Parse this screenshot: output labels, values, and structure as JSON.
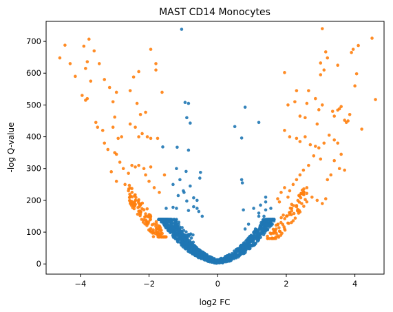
{
  "chart_data": {
    "type": "scatter",
    "title": "MAST CD14 Monocytes",
    "xlabel": "log2 FC",
    "ylabel": "-log Q-value",
    "xlim": [
      -5.0,
      4.85
    ],
    "ylim": [
      -32,
      763
    ],
    "xticks": [
      -4,
      -2,
      0,
      2,
      4
    ],
    "yticks": [
      0,
      100,
      200,
      300,
      400,
      500,
      600,
      700
    ],
    "grid": false,
    "colors": {
      "not_significant": "#1f77b4",
      "significant": "#ff7f0e"
    },
    "series": [
      {
        "color_key": "not_significant",
        "points": [
          [
            -1.05,
            738
          ],
          [
            -0.95,
            508
          ],
          [
            -0.85,
            505
          ],
          [
            -0.9,
            460
          ],
          [
            -0.8,
            443
          ],
          [
            -1.6,
            368
          ],
          [
            -1.18,
            367
          ],
          [
            -0.85,
            358
          ],
          [
            -1.2,
            300
          ],
          [
            -0.92,
            291
          ],
          [
            -0.5,
            288
          ],
          [
            -0.52,
            270
          ],
          [
            -0.8,
            245
          ],
          [
            -0.6,
            200
          ],
          [
            -0.7,
            208
          ],
          [
            -1.1,
            265
          ],
          [
            -1.3,
            250
          ],
          [
            -0.98,
            225
          ],
          [
            -1.0,
            230
          ],
          [
            -0.9,
            198
          ],
          [
            -1.15,
            215
          ],
          [
            -0.55,
            165
          ],
          [
            -0.45,
            150
          ],
          [
            -0.85,
            168
          ],
          [
            -1.5,
            175
          ],
          [
            -1.3,
            178
          ],
          [
            -1.2,
            175
          ],
          [
            -0.7,
            180
          ],
          [
            -0.6,
            175
          ],
          [
            0.8,
            493
          ],
          [
            0.5,
            432
          ],
          [
            0.7,
            396
          ],
          [
            1.2,
            445
          ],
          [
            0.7,
            265
          ],
          [
            0.72,
            255
          ],
          [
            1.4,
            210
          ],
          [
            1.4,
            195
          ],
          [
            1.25,
            185
          ],
          [
            1.05,
            175
          ],
          [
            1.2,
            160
          ],
          [
            0.75,
            170
          ],
          [
            1.5,
            140
          ],
          [
            1.35,
            150
          ],
          [
            1.2,
            150
          ],
          [
            1.5,
            120
          ],
          [
            1.4,
            170
          ],
          [
            0.8,
            110
          ],
          [
            0.9,
            125
          ],
          [
            1.1,
            110
          ],
          [
            1.55,
            175
          ]
        ],
        "band": {
          "description": "dense V-shaped cluster near the bottom",
          "x": [
            -1.75,
            1.7
          ],
          "y_min": 0,
          "count": 1050
        }
      },
      {
        "color_key": "significant",
        "points": [
          [
            -4.6,
            648
          ],
          [
            -4.45,
            688
          ],
          [
            -4.3,
            630
          ],
          [
            -4.15,
            590
          ],
          [
            -3.95,
            530
          ],
          [
            -3.85,
            515
          ],
          [
            -3.8,
            520
          ],
          [
            -3.9,
            685
          ],
          [
            -3.75,
            707
          ],
          [
            -3.6,
            670
          ],
          [
            -3.45,
            630
          ],
          [
            -3.7,
            575
          ],
          [
            -3.85,
            615
          ],
          [
            -3.8,
            636
          ],
          [
            -3.3,
            580
          ],
          [
            -3.15,
            555
          ],
          [
            -3.05,
            510
          ],
          [
            -2.95,
            540
          ],
          [
            -2.55,
            545
          ],
          [
            -2.45,
            588
          ],
          [
            -2.35,
            505
          ],
          [
            -2.3,
            605
          ],
          [
            -2.25,
            470
          ],
          [
            -2.1,
            477
          ],
          [
            -1.95,
            675
          ],
          [
            -1.8,
            630
          ],
          [
            -1.8,
            610
          ],
          [
            -1.62,
            540
          ],
          [
            -3.55,
            445
          ],
          [
            -3.5,
            430
          ],
          [
            -3.35,
            420
          ],
          [
            -3.3,
            380
          ],
          [
            -3.2,
            360
          ],
          [
            -3.05,
            430
          ],
          [
            -3.0,
            462
          ],
          [
            -2.9,
            395
          ],
          [
            -2.8,
            400
          ],
          [
            -2.55,
            440
          ],
          [
            -2.4,
            430
          ],
          [
            -2.3,
            400
          ],
          [
            -2.2,
            410
          ],
          [
            -2.05,
            400
          ],
          [
            -1.95,
            395
          ],
          [
            -1.75,
            395
          ],
          [
            -3.0,
            350
          ],
          [
            -2.95,
            345
          ],
          [
            -2.85,
            320
          ],
          [
            -2.75,
            300
          ],
          [
            -2.6,
            285
          ],
          [
            -2.5,
            310
          ],
          [
            -2.4,
            305
          ],
          [
            -2.3,
            310
          ],
          [
            -2.15,
            300
          ],
          [
            -2.1,
            280
          ],
          [
            -2.0,
            260
          ],
          [
            -1.95,
            305
          ],
          [
            -1.85,
            240
          ],
          [
            -1.7,
            225
          ],
          [
            -1.55,
            280
          ],
          [
            -3.1,
            290
          ],
          [
            -2.95,
            260
          ],
          [
            -2.7,
            250
          ],
          [
            -2.6,
            230
          ],
          [
            3.05,
            740
          ],
          [
            3.15,
            667
          ],
          [
            3.2,
            648
          ],
          [
            3.0,
            632
          ],
          [
            3.1,
            610
          ],
          [
            3.5,
            625
          ],
          [
            3.9,
            665
          ],
          [
            3.95,
            675
          ],
          [
            4.1,
            687
          ],
          [
            4.5,
            710
          ],
          [
            4.6,
            517
          ],
          [
            4.2,
            424
          ],
          [
            4.05,
            598
          ],
          [
            4.0,
            560
          ],
          [
            3.8,
            450
          ],
          [
            3.7,
            452
          ],
          [
            3.6,
            495
          ],
          [
            3.55,
            488
          ],
          [
            3.5,
            484
          ],
          [
            3.0,
            595
          ],
          [
            2.65,
            545
          ],
          [
            2.85,
            520
          ],
          [
            2.95,
            485
          ],
          [
            3.05,
            500
          ],
          [
            2.6,
            505
          ],
          [
            2.3,
            545
          ],
          [
            2.25,
            510
          ],
          [
            2.05,
            500
          ],
          [
            1.95,
            602
          ],
          [
            2.4,
            465
          ],
          [
            2.55,
            460
          ],
          [
            2.9,
            440
          ],
          [
            3.35,
            480
          ],
          [
            3.4,
            465
          ],
          [
            3.85,
            470
          ],
          [
            3.75,
            445
          ],
          [
            1.95,
            420
          ],
          [
            2.1,
            400
          ],
          [
            2.3,
            395
          ],
          [
            2.4,
            385
          ],
          [
            2.55,
            400
          ],
          [
            2.7,
            375
          ],
          [
            2.85,
            370
          ],
          [
            2.95,
            365
          ],
          [
            3.1,
            380
          ],
          [
            3.25,
            405
          ],
          [
            3.4,
            390
          ],
          [
            3.5,
            380
          ],
          [
            3.6,
            345
          ],
          [
            3.4,
            325
          ],
          [
            3.55,
            300
          ],
          [
            3.7,
            295
          ],
          [
            3.3,
            280
          ],
          [
            3.2,
            265
          ],
          [
            3.0,
            330
          ],
          [
            2.8,
            340
          ],
          [
            2.65,
            310
          ],
          [
            2.5,
            295
          ],
          [
            2.4,
            280
          ],
          [
            2.3,
            265
          ],
          [
            2.2,
            250
          ],
          [
            2.1,
            230
          ],
          [
            2.05,
            210
          ],
          [
            1.95,
            240
          ],
          [
            1.85,
            225
          ],
          [
            1.75,
            205
          ],
          [
            1.8,
            195
          ],
          [
            2.6,
            240
          ],
          [
            2.75,
            210
          ],
          [
            2.9,
            200
          ],
          [
            3.05,
            190
          ],
          [
            3.15,
            205
          ],
          [
            2.45,
            190
          ],
          [
            2.3,
            180
          ],
          [
            2.15,
            155
          ]
        ],
        "band": {
          "description": "dense arms along the V edges",
          "left_x": [
            -2.6,
            -1.5
          ],
          "right_x": [
            1.45,
            2.6
          ],
          "count": 220
        }
      }
    ]
  }
}
